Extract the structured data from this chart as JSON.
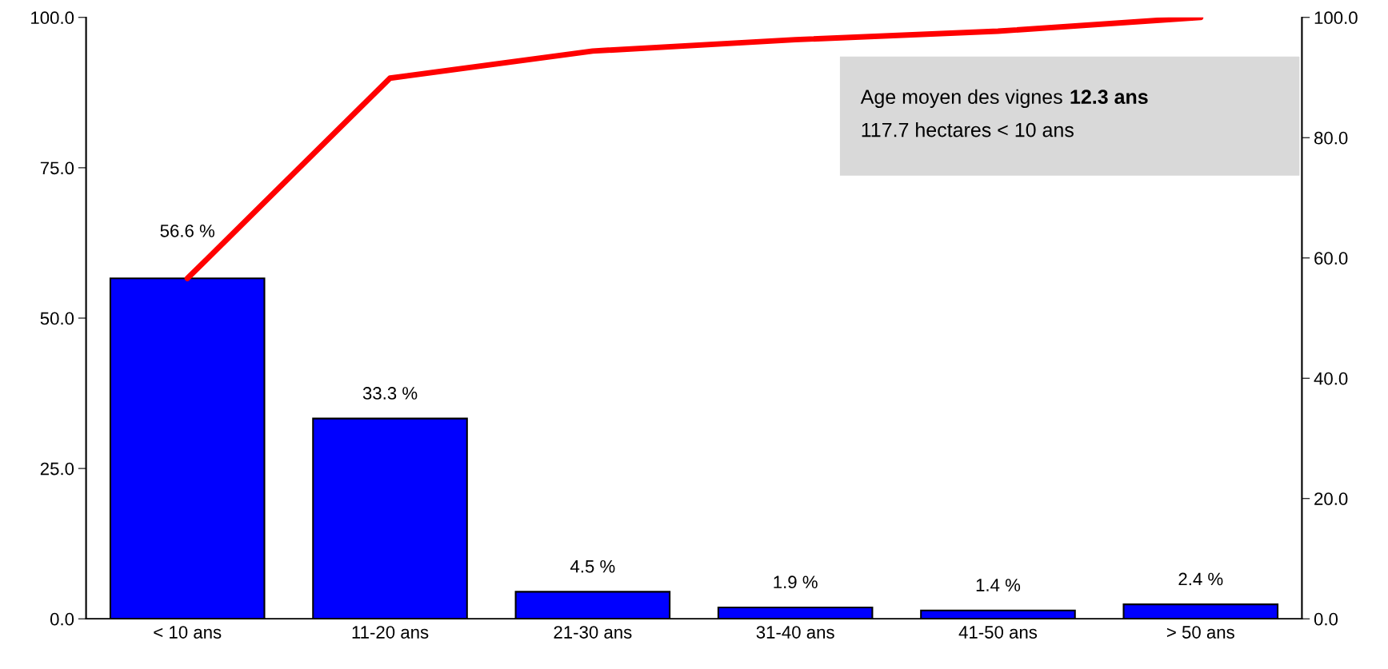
{
  "chart_data": {
    "type": "bar",
    "categories": [
      "< 10 ans",
      "11-20 ans",
      "21-30 ans",
      "31-40 ans",
      "41-50 ans",
      "> 50 ans"
    ],
    "series": [
      {
        "type": "bar",
        "color": "#0000ff",
        "values": [
          56.6,
          33.3,
          4.5,
          1.9,
          1.4,
          2.4
        ],
        "value_labels": [
          "56.6 %",
          "33.3 %",
          "4.5 %",
          "1.9 %",
          "1.4 %",
          "2.4 %"
        ]
      },
      {
        "type": "line",
        "axis": "y2",
        "color": "#ff0000",
        "values": [
          56.6,
          89.9,
          94.4,
          96.3,
          97.7,
          100.0
        ]
      }
    ],
    "ylim": [
      0,
      100
    ],
    "yticks": [
      {
        "value": 0,
        "label": "0.0"
      },
      {
        "value": 25,
        "label": "25.0"
      },
      {
        "value": 50,
        "label": "50.0"
      },
      {
        "value": 75,
        "label": "75.0"
      },
      {
        "value": 100,
        "label": "100.0"
      }
    ],
    "y2lim": [
      0,
      100
    ],
    "y2ticks": [
      {
        "value": 0,
        "label": "0.0"
      },
      {
        "value": 20,
        "label": "20.0"
      },
      {
        "value": 40,
        "label": "40.0"
      },
      {
        "value": 60,
        "label": "60.0"
      },
      {
        "value": 80,
        "label": "80.0"
      },
      {
        "value": 100,
        "label": "100.0"
      }
    ],
    "annotations": [
      "Age moyen des vignes",
      "12.3 ans",
      "117.7 hectares < 10 ans"
    ],
    "grid": false,
    "legend": false,
    "marker": "none",
    "line_style": "solid"
  }
}
